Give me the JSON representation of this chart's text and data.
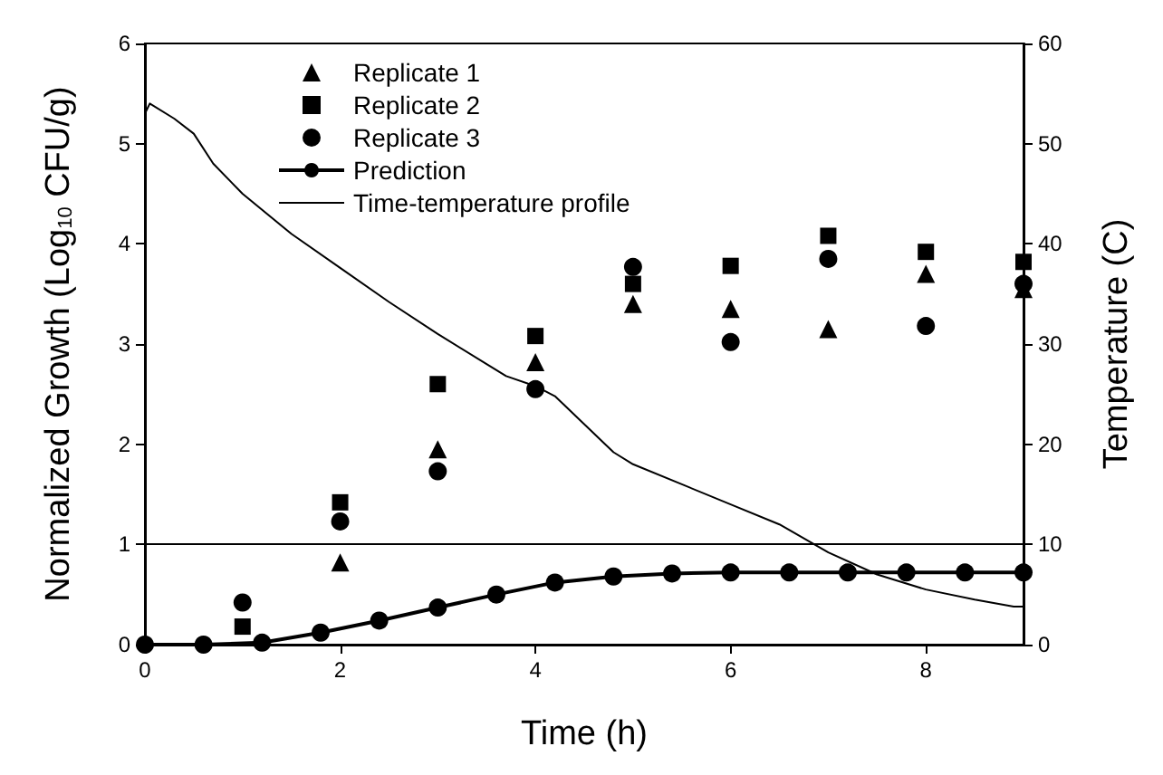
{
  "chart_data": {
    "type": "scatter",
    "xlabel": "Time (h)",
    "ylabel": "Normalized Growth (Log$_{10}$ CFU/g)",
    "y2label": "Temperature (C)",
    "x": [
      1,
      2,
      3,
      4,
      5,
      6,
      7,
      8,
      9
    ],
    "xlim": [
      0,
      9
    ],
    "xticks": [
      0,
      2,
      4,
      6,
      8
    ],
    "ylim": [
      0,
      6
    ],
    "yticks": [
      0,
      1,
      2,
      3,
      4,
      5,
      6
    ],
    "y2lim": [
      0,
      60
    ],
    "y2ticks": [
      0,
      10,
      20,
      30,
      40,
      50,
      60
    ],
    "legend": "top left",
    "grid": false,
    "ref_lines": [
      {
        "axis": "y",
        "value": 1,
        "color": "#000000"
      }
    ],
    "series": [
      {
        "name": "Replicate 1",
        "color": "#000000",
        "marker": "triangle",
        "values": [
          null,
          0.82,
          1.95,
          2.82,
          3.4,
          3.35,
          3.15,
          3.7,
          3.55
        ]
      },
      {
        "name": "Replicate 2",
        "color": "#000000",
        "marker": "square",
        "values": [
          0.18,
          1.42,
          2.6,
          3.08,
          3.6,
          3.78,
          4.08,
          3.92,
          3.82
        ]
      },
      {
        "name": "Replicate 3",
        "color": "#000000",
        "marker": "circle",
        "values": [
          0.42,
          1.23,
          1.73,
          2.55,
          3.77,
          3.02,
          3.85,
          3.18,
          3.6
        ]
      },
      {
        "name": "Prediction",
        "type": "line",
        "color": "#000000",
        "marker": "circle",
        "line_style": "solid",
        "x": [
          0,
          0.6,
          1.2,
          1.8,
          2.4,
          3.0,
          3.6,
          4.2,
          4.8,
          5.4,
          6.0,
          6.6,
          7.2,
          7.8,
          8.4,
          9.0
        ],
        "values": [
          0,
          0,
          0.02,
          0.12,
          0.24,
          0.37,
          0.5,
          0.62,
          0.68,
          0.71,
          0.72,
          0.72,
          0.72,
          0.72,
          0.72,
          0.72
        ]
      },
      {
        "name": "Time-temperature profile",
        "type": "line",
        "axis": "y2",
        "color": "#000000",
        "marker": "none",
        "line_style": "solid",
        "x": [
          0,
          0.05,
          0.3,
          0.5,
          0.7,
          1.0,
          1.5,
          2.0,
          2.5,
          3.0,
          3.5,
          3.7,
          4.0,
          4.2,
          4.5,
          4.8,
          5.0,
          5.5,
          6.0,
          6.5,
          7.0,
          7.5,
          8.0,
          8.5,
          8.9,
          9.0
        ],
        "values": [
          53,
          54,
          52.5,
          51,
          48,
          45,
          41,
          37.6,
          34.2,
          31,
          28,
          26.8,
          25.8,
          24.8,
          22,
          19.2,
          18,
          16,
          14,
          12,
          9.2,
          7,
          5.5,
          4.5,
          3.8,
          3.8
        ]
      }
    ]
  }
}
